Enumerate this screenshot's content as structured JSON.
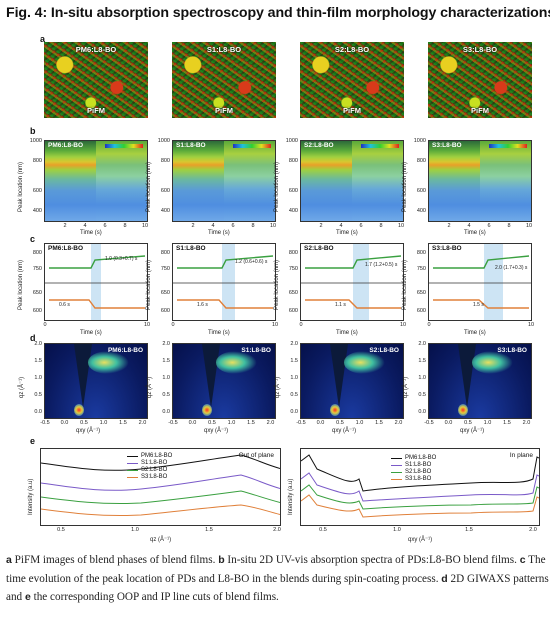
{
  "figure": {
    "title": "Fig. 4: In-situ absorption spectroscopy and thin-film morphology characterizations."
  },
  "panel_labels": {
    "a": "a",
    "b": "b",
    "c": "c",
    "d": "d",
    "e": "e"
  },
  "samples": [
    "PM6:L8-BO",
    "S1:L8-BO",
    "S2:L8-BO",
    "S3:L8-BO"
  ],
  "pifm_label": "PiFM",
  "uv": {
    "y_ticks": [
      "1000",
      "800",
      "600",
      "400"
    ],
    "x_ticks": [
      "2",
      "4",
      "6",
      "8",
      "10"
    ],
    "xlabel": "Time (s)",
    "ylabel": "Peak location (nm)",
    "cbar_low": "0",
    "cbar_high": [
      "100",
      "100",
      "1000",
      "1000"
    ]
  },
  "time_evo": {
    "annot_top": [
      "1.0 (0.3+0.7) s",
      "1.2 (0.6+0.6) s",
      "1.7 (1.2+0.5) s",
      "2.0 (1.7+0.3) s"
    ],
    "annot_bot": [
      "0.6 s",
      "1.6 s",
      "1.1 s",
      "1.5 s"
    ],
    "y_ticks_top": [
      "800",
      "750"
    ],
    "y_ticks_bot": [
      "650",
      "600"
    ],
    "x_ticks": [
      "0",
      "10"
    ],
    "xlabel": "Time (s)",
    "ylabel": "Peak location (nm)"
  },
  "giwaxs": {
    "y_ticks": [
      "2.0",
      "1.5",
      "1.0",
      "0.5",
      "0.0"
    ],
    "x_ticks": [
      "-0.5",
      "0.0",
      "0.5",
      "1.0",
      "1.5",
      "2.0"
    ],
    "xlabel": "qxy (Å⁻¹)",
    "ylabel": "qz (Å⁻¹)"
  },
  "linecuts": {
    "oop": {
      "title": "Out of plane",
      "x_ticks": [
        "0.5",
        "1.0",
        "1.5",
        "2.0"
      ],
      "xlabel": "qz (Å⁻¹)"
    },
    "ip": {
      "title": "In plane",
      "x_ticks": [
        "0.5",
        "1.0",
        "1.5",
        "2.0"
      ],
      "xlabel": "qxy (Å⁻¹)"
    },
    "ylabel": "Intensity (a.u)",
    "legend": [
      "PM6:L8-BO",
      "S1:L8-BO",
      "S2:L8-BO",
      "S3:L8-BO"
    ],
    "colors": [
      "#111111",
      "#7a5ac8",
      "#3aa040",
      "#e0803a"
    ]
  },
  "caption": {
    "a_label": "a",
    "a_text": " PiFM images of blend phases of blend films. ",
    "b_label": "b",
    "b_text": " In-situ 2D UV-vis absorption spectra of PDs:L8-BO blend films. ",
    "c_label": "c",
    "c_text": " The time evolution of the peak location of PDs and L8-BO in the blends during spin-coating process. ",
    "d_label": "d",
    "d_text": " 2D GIWAXS patterns and ",
    "e_label": "e",
    "e_text": " the corresponding OOP and IP line cuts of blend films."
  }
}
